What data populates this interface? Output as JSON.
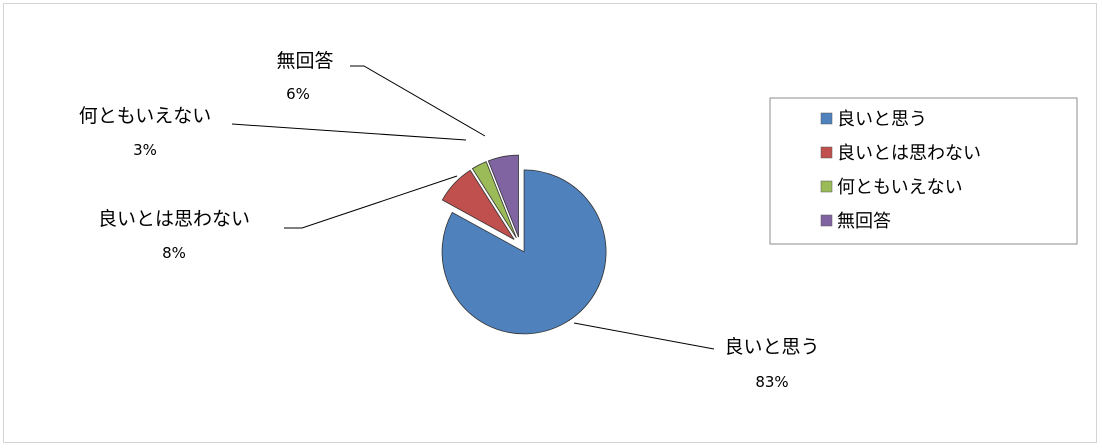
{
  "chart_data": {
    "type": "pie",
    "exploded": true,
    "categories": [
      "良いと思う",
      "良いとは思わない",
      "何ともいえない",
      "無回答"
    ],
    "values": [
      83,
      8,
      3,
      6
    ],
    "labels": [
      "83%",
      "8%",
      "3%",
      "6%"
    ],
    "colors": [
      "#4F81BD",
      "#C0504D",
      "#9BBB59",
      "#8064A2"
    ],
    "legend_position": "right",
    "title": ""
  }
}
